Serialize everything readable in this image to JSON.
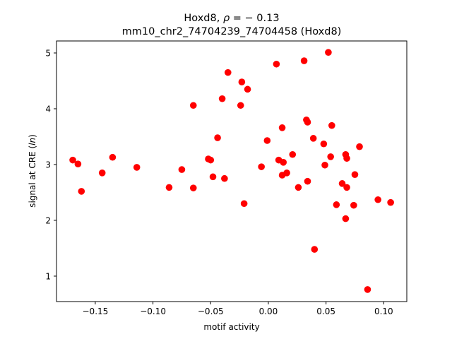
{
  "chart_data": {
    "type": "scatter",
    "title_line1_prefix": "Hoxd8, ",
    "title_rho_symbol": "ρ",
    "title_rho_value": " = − 0.13",
    "title_line2": "mm10_chr2_74704239_74704458 (Hoxd8)",
    "xlabel": "motif activity",
    "ylabel_prefix": "signal at CRE (",
    "ylabel_italic": "ln",
    "ylabel_suffix": ")",
    "xlim": [
      -0.1836,
      0.12
    ],
    "ylim": [
      0.544,
      5.215
    ],
    "xticks": [
      -0.15,
      -0.1,
      -0.05,
      0.0,
      0.05,
      0.1
    ],
    "xtick_labels": [
      "−0.15",
      "−0.10",
      "−0.05",
      "0.00",
      "0.05",
      "0.10"
    ],
    "yticks": [
      1,
      2,
      3,
      4,
      5
    ],
    "ytick_labels": [
      "1",
      "2",
      "3",
      "4",
      "5"
    ],
    "grid": false,
    "marker_color": "#ff0000",
    "points": [
      [
        -0.1695,
        3.08
      ],
      [
        -0.165,
        3.01
      ],
      [
        -0.162,
        2.52
      ],
      [
        -0.144,
        2.85
      ],
      [
        -0.135,
        3.13
      ],
      [
        -0.114,
        2.95
      ],
      [
        -0.086,
        2.59
      ],
      [
        -0.075,
        2.91
      ],
      [
        -0.065,
        4.06
      ],
      [
        -0.065,
        2.58
      ],
      [
        -0.052,
        3.1
      ],
      [
        -0.05,
        3.08
      ],
      [
        -0.048,
        2.78
      ],
      [
        -0.044,
        3.48
      ],
      [
        -0.04,
        4.18
      ],
      [
        -0.038,
        2.75
      ],
      [
        -0.035,
        4.65
      ],
      [
        0.052,
        5.01
      ],
      [
        0.031,
        4.86
      ],
      [
        0.007,
        4.8
      ],
      [
        -0.023,
        4.48
      ],
      [
        -0.018,
        4.35
      ],
      [
        -0.024,
        4.06
      ],
      [
        0.033,
        3.8
      ],
      [
        0.034,
        3.76
      ],
      [
        0.055,
        3.7
      ],
      [
        0.012,
        3.66
      ],
      [
        0.039,
        3.47
      ],
      [
        -0.001,
        3.43
      ],
      [
        0.048,
        3.37
      ],
      [
        0.079,
        3.32
      ],
      [
        0.021,
        3.18
      ],
      [
        0.067,
        3.18
      ],
      [
        0.068,
        3.11
      ],
      [
        0.054,
        3.14
      ],
      [
        0.009,
        3.08
      ],
      [
        0.013,
        3.04
      ],
      [
        0.049,
        2.99
      ],
      [
        -0.006,
        2.96
      ],
      [
        0.016,
        2.85
      ],
      [
        0.012,
        2.81
      ],
      [
        0.075,
        2.82
      ],
      [
        0.034,
        2.7
      ],
      [
        0.064,
        2.66
      ],
      [
        0.068,
        2.59
      ],
      [
        0.026,
        2.59
      ],
      [
        -0.021,
        2.3
      ],
      [
        0.095,
        2.37
      ],
      [
        0.106,
        2.32
      ],
      [
        0.059,
        2.28
      ],
      [
        0.074,
        2.27
      ],
      [
        0.067,
        2.03
      ],
      [
        0.04,
        1.48
      ],
      [
        0.086,
        0.76
      ]
    ]
  }
}
